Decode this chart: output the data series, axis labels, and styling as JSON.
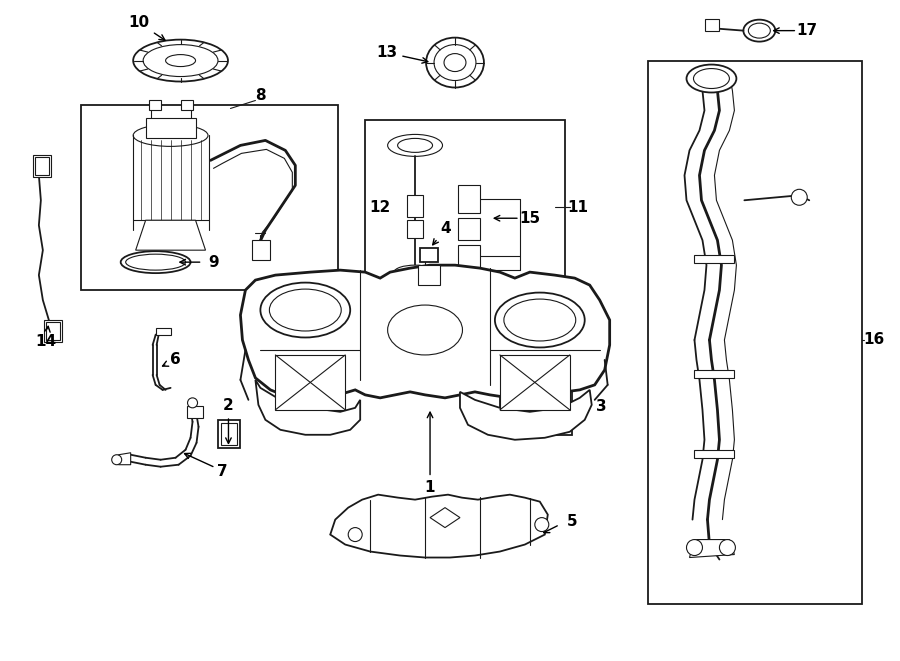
{
  "bg_color": "#ffffff",
  "fig_width": 9.0,
  "fig_height": 6.61,
  "dpi": 100,
  "line_color": "#1a1a1a",
  "label_fontsize": 11,
  "label_color": "#000000"
}
